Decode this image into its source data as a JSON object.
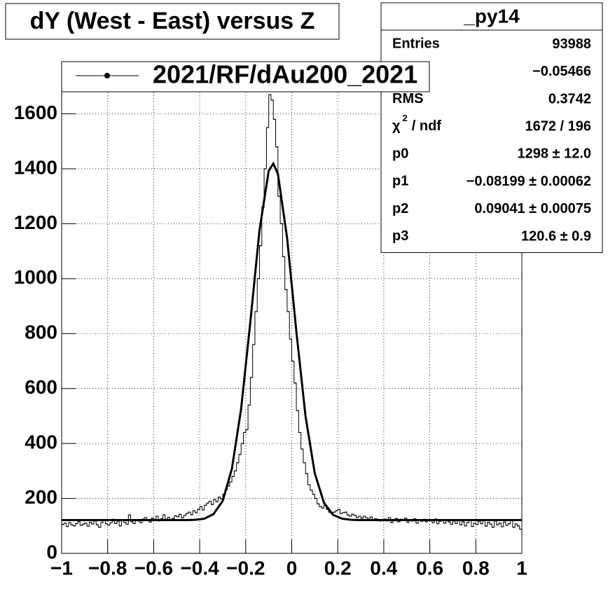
{
  "chart_data": {
    "type": "histogram",
    "title": "dY (West - East) versus Z",
    "legend": {
      "label": "2021/RF/dAu200_2021",
      "corner": "top-left"
    },
    "stats": {
      "title": "_py14",
      "rows": [
        {
          "name": "Entries",
          "value": 93988
        },
        {
          "value": "−0.05466"
        },
        {
          "name": "RMS",
          "value": 0.3742
        },
        {
          "name": "χ",
          "superscript": "2",
          "name_rest": "/ ndf",
          "value": "1672 / 196"
        },
        {
          "name": "p0",
          "value": "1298 ± 12.0"
        },
        {
          "name": "p1",
          "value": "−0.08199 ± 0.00062"
        },
        {
          "name": "p2",
          "value": "0.09041 ± 0.00075"
        },
        {
          "name": "p3",
          "value": "120.6 ± 0.9"
        }
      ]
    },
    "xlim": [
      -1,
      1
    ],
    "ylim": [
      0,
      1790
    ],
    "grid": true,
    "xticks": [
      {
        "value": -1,
        "label": "−1"
      },
      {
        "value": -0.8,
        "label": "−0.8"
      },
      {
        "value": -0.6,
        "label": "−0.6"
      },
      {
        "value": -0.4,
        "label": "−0.4"
      },
      {
        "value": -0.2,
        "label": "−0.2"
      },
      0,
      0.2,
      0.4,
      0.6,
      0.8,
      1
    ],
    "yticks": [
      0,
      200,
      400,
      600,
      800,
      1000,
      1200,
      1400,
      1600
    ],
    "bins": [
      -1,
      -0.99,
      -0.98,
      -0.97,
      -0.96,
      -0.95,
      -0.94,
      -0.93,
      -0.92,
      -0.91,
      -0.9,
      -0.89,
      -0.88,
      -0.87,
      -0.86,
      -0.85,
      -0.84,
      -0.83,
      -0.82,
      -0.81,
      -0.8,
      -0.79,
      -0.78,
      -0.77,
      -0.76,
      -0.75,
      -0.74,
      -0.73,
      -0.72,
      -0.71,
      -0.7,
      -0.69,
      -0.68,
      -0.67,
      -0.66,
      -0.65,
      -0.64,
      -0.63,
      -0.62,
      -0.61,
      -0.6,
      -0.59,
      -0.58,
      -0.57,
      -0.56,
      -0.55,
      -0.54,
      -0.53,
      -0.52,
      -0.51,
      -0.5,
      -0.49,
      -0.48,
      -0.47,
      -0.46,
      -0.45,
      -0.44,
      -0.43,
      -0.42,
      -0.41,
      -0.4,
      -0.39,
      -0.38,
      -0.37,
      -0.36,
      -0.35,
      -0.34,
      -0.33,
      -0.32,
      -0.31,
      -0.3,
      -0.29,
      -0.28,
      -0.27,
      -0.26,
      -0.25,
      -0.24,
      -0.23,
      -0.22,
      -0.21,
      -0.2,
      -0.19,
      -0.18,
      -0.17,
      -0.16,
      -0.15,
      -0.14,
      -0.13,
      -0.12,
      -0.11,
      -0.1,
      -0.09,
      -0.08,
      -0.07,
      -0.06,
      -0.05,
      -0.04,
      -0.03,
      -0.02,
      -0.01,
      0,
      0.01,
      0.02,
      0.03,
      0.04,
      0.05,
      0.06,
      0.07,
      0.08,
      0.09,
      0.1,
      0.11,
      0.12,
      0.13,
      0.14,
      0.15,
      0.16,
      0.17,
      0.18,
      0.19,
      0.2,
      0.21,
      0.22,
      0.23,
      0.24,
      0.25,
      0.26,
      0.27,
      0.28,
      0.29,
      0.3,
      0.31,
      0.32,
      0.33,
      0.34,
      0.35,
      0.36,
      0.37,
      0.38,
      0.39,
      0.4,
      0.41,
      0.42,
      0.43,
      0.44,
      0.45,
      0.46,
      0.47,
      0.48,
      0.49,
      0.5,
      0.51,
      0.52,
      0.53,
      0.54,
      0.55,
      0.56,
      0.57,
      0.58,
      0.59,
      0.6,
      0.61,
      0.62,
      0.63,
      0.64,
      0.65,
      0.66,
      0.67,
      0.68,
      0.69,
      0.7,
      0.71,
      0.72,
      0.73,
      0.74,
      0.75,
      0.76,
      0.77,
      0.78,
      0.79,
      0.8,
      0.81,
      0.82,
      0.83,
      0.84,
      0.85,
      0.86,
      0.87,
      0.88,
      0.89,
      0.9,
      0.91,
      0.92,
      0.93,
      0.94,
      0.95,
      0.96,
      0.97,
      0.98,
      0.99,
      1
    ],
    "series": [
      {
        "name": "2021/RF/dAu200_2021",
        "color": "#000000",
        "values": [
          105,
          110,
          98,
          112,
          104,
          100,
          108,
          115,
          102,
          106,
          110,
          99,
          113,
          107,
          118,
          104,
          95,
          112,
          120,
          108,
          103,
          111,
          124,
          109,
          117,
          100,
          121,
          113,
          106,
          140,
          115,
          109,
          122,
          118,
          112,
          125,
          130,
          119,
          114,
          128,
          121,
          135,
          118,
          126,
          140,
          124,
          131,
          119,
          127,
          137,
          133,
          142,
          129,
          138,
          145,
          150,
          141,
          155,
          148,
          160,
          170,
          158,
          175,
          183,
          190,
          178,
          196,
          188,
          205,
          198,
          215,
          232,
          245,
          260,
          280,
          300,
          330,
          360,
          400,
          440,
          450,
          540,
          640,
          760,
          880,
          1000,
          1120,
          1260,
          1400,
          1550,
          1670,
          1650,
          1580,
          1480,
          1300,
          1200,
          1080,
          960,
          880,
          780,
          700,
          620,
          520,
          440,
          380,
          330,
          290,
          250,
          230,
          215,
          200,
          180,
          170,
          165,
          175,
          160,
          150,
          145,
          150,
          155,
          160,
          145,
          148,
          150,
          140,
          135,
          142,
          138,
          130,
          135,
          128,
          135,
          130,
          125,
          132,
          120,
          126,
          124,
          118,
          122,
          125,
          118,
          130,
          112,
          121,
          127,
          115,
          124,
          119,
          128,
          113,
          122,
          118,
          126,
          110,
          121,
          117,
          124,
          115,
          119,
          120,
          112,
          125,
          108,
          117,
          123,
          110,
          119,
          114,
          106,
          118,
          109,
          121,
          104,
          115,
          100,
          112,
          119,
          98,
          110,
          105,
          117,
          108,
          121,
          99,
          113,
          106,
          95,
          118,
          104,
          110,
          97,
          114,
          102,
          108,
          119,
          95,
          107,
          100,
          88
        ]
      },
      {
        "type": "line",
        "color": "#000000",
        "x": [
          -1,
          -0.5,
          -0.46,
          -0.42,
          -0.38,
          -0.34,
          -0.3,
          -0.26,
          -0.22,
          -0.18,
          -0.14,
          -0.1,
          -0.08,
          -0.06,
          -0.02,
          0.02,
          0.06,
          0.1,
          0.14,
          0.18,
          0.22,
          0.26,
          0.3,
          1
        ],
        "values": [
          121,
          121,
          121,
          122,
          126,
          143,
          191,
          308,
          526,
          842,
          1177,
          1393,
          1419,
          1381,
          1147,
          808,
          499,
          292,
          184,
          140,
          126,
          122,
          121,
          121
        ]
      }
    ]
  }
}
